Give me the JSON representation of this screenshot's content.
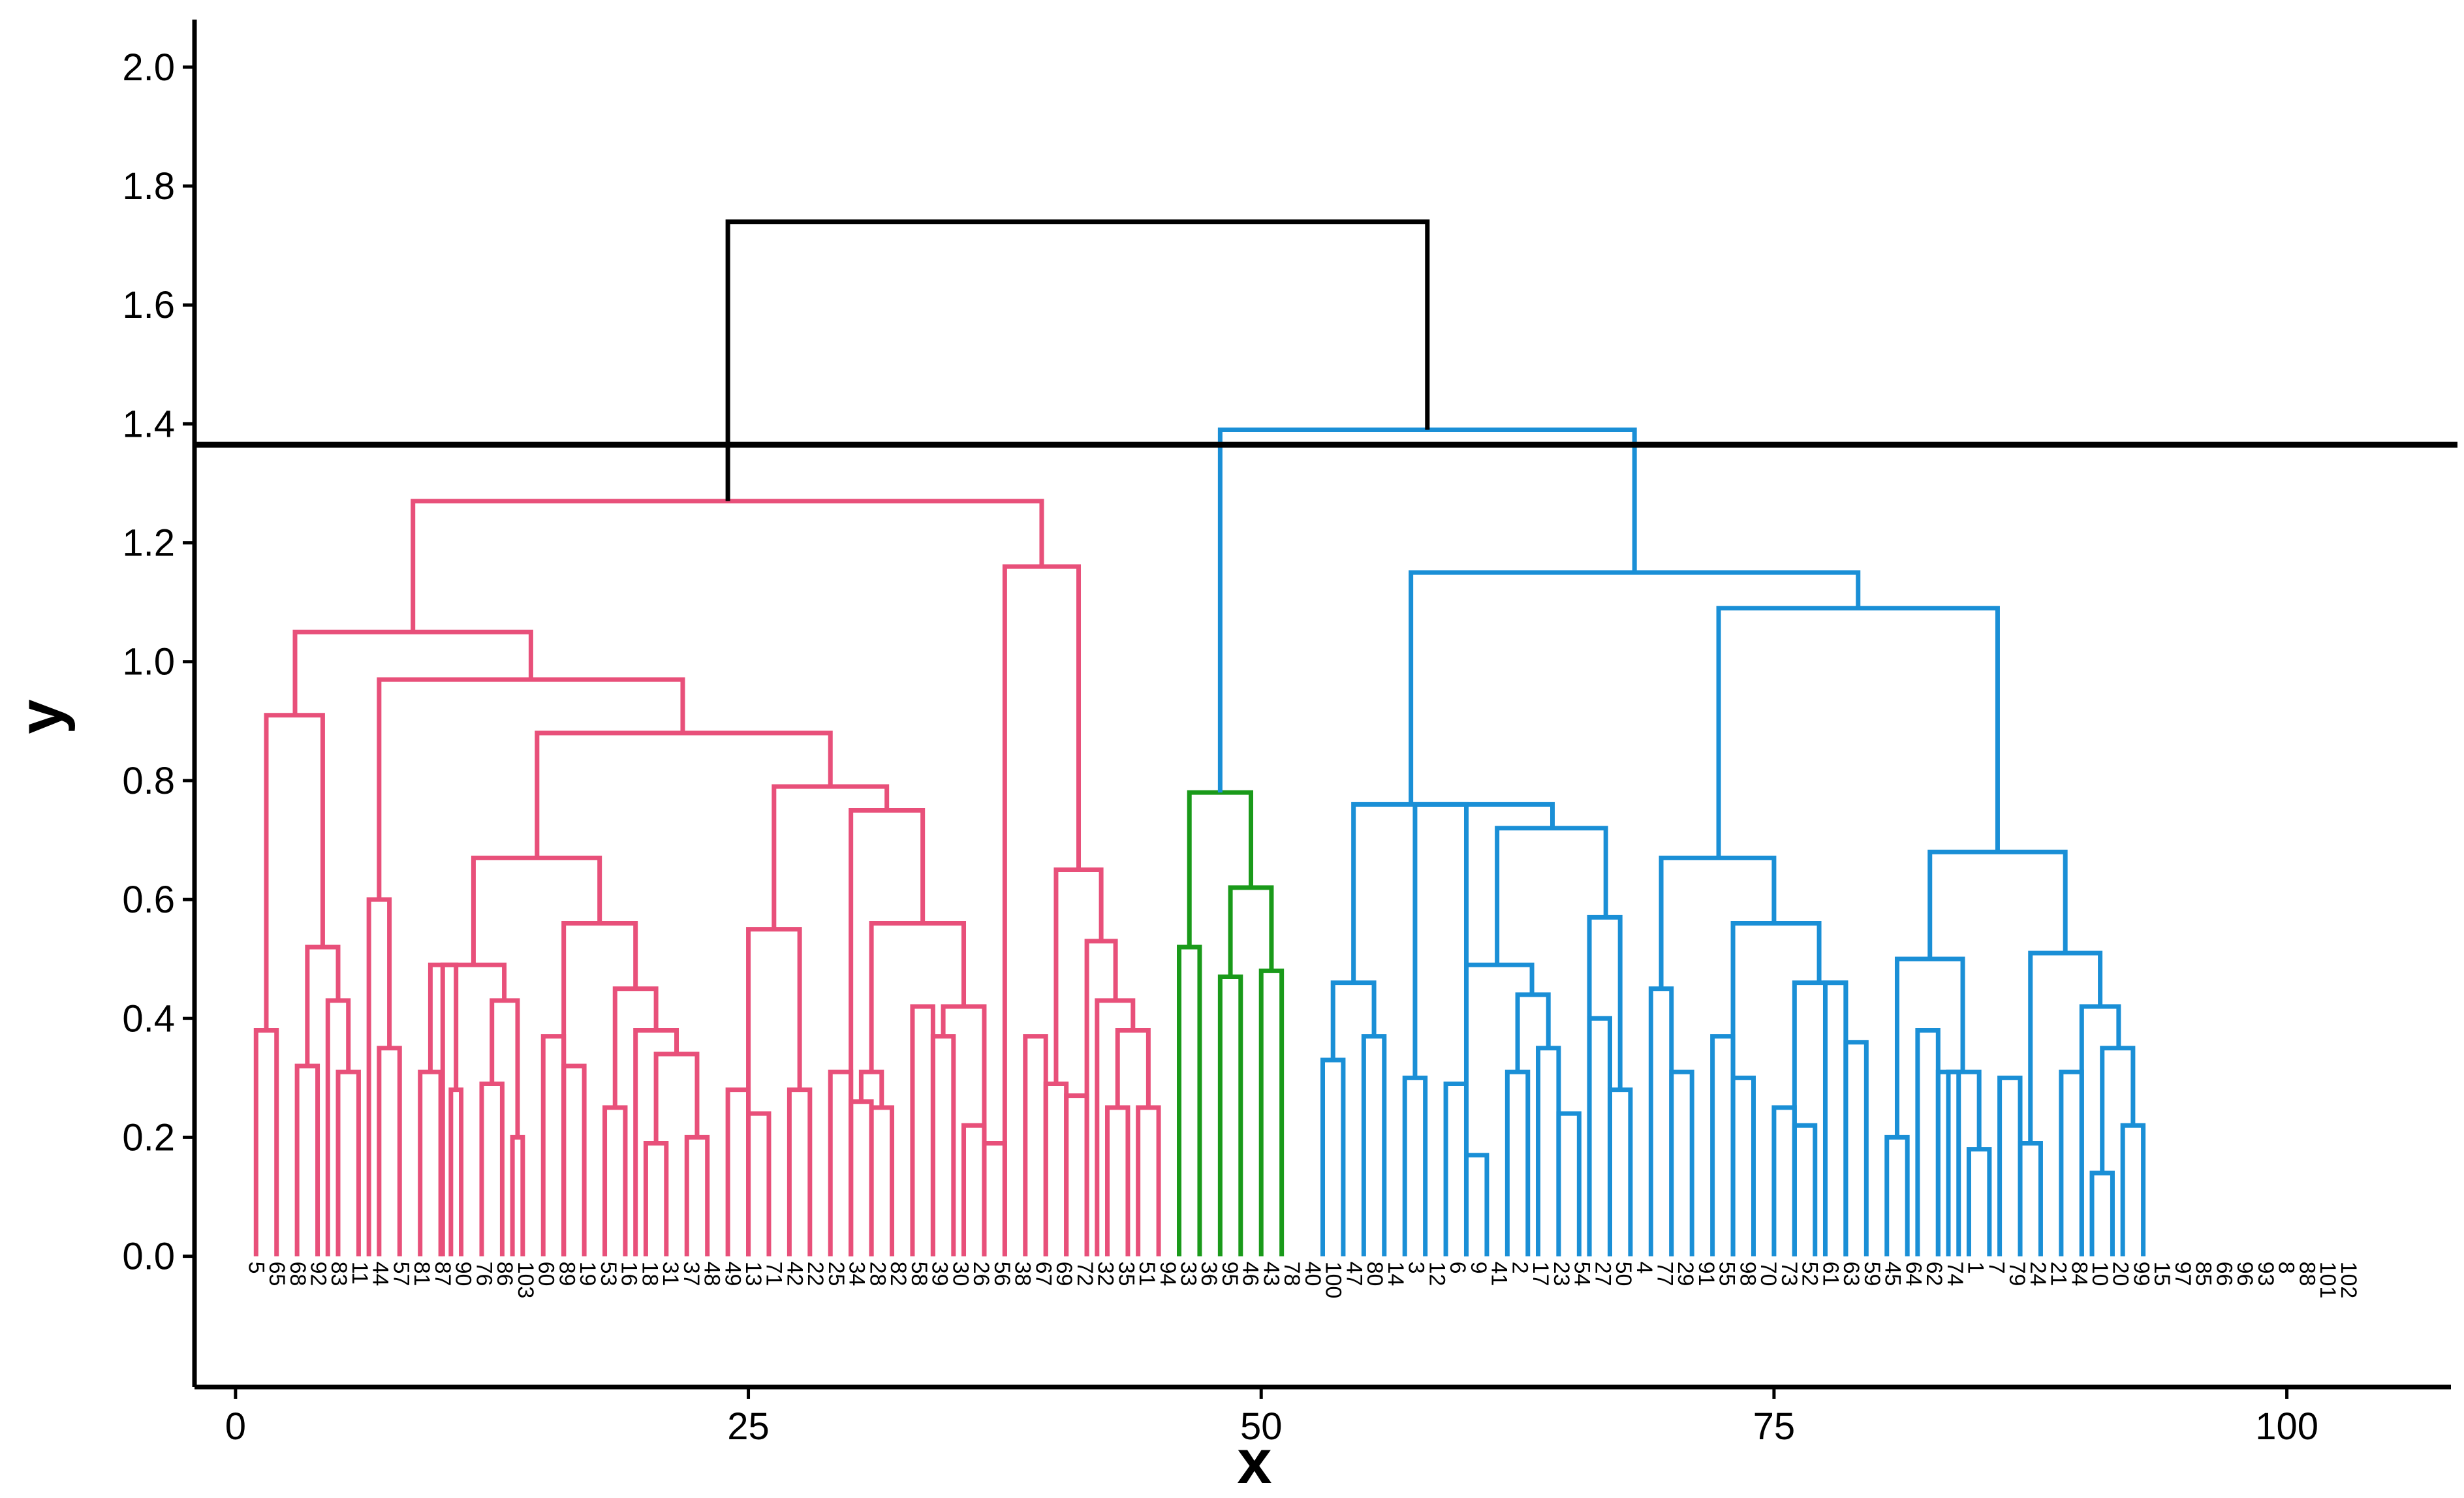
{
  "chart_data": {
    "type": "dendrogram",
    "xlabel": "x",
    "ylabel": "y",
    "xlim": [
      -2,
      108
    ],
    "ylim": [
      -0.22,
      2.08
    ],
    "x_ticks": [
      {
        "value": 0,
        "label": "0"
      },
      {
        "value": 25,
        "label": "25"
      },
      {
        "value": 50,
        "label": "50"
      },
      {
        "value": 75,
        "label": "75"
      },
      {
        "value": 100,
        "label": "100"
      }
    ],
    "y_ticks": [
      {
        "value": 0.0,
        "label": "0.0"
      },
      {
        "value": 0.2,
        "label": "0.2"
      },
      {
        "value": 0.4,
        "label": "0.4"
      },
      {
        "value": 0.6,
        "label": "0.6"
      },
      {
        "value": 0.8,
        "label": "0.8"
      },
      {
        "value": 1.0,
        "label": "1.0"
      },
      {
        "value": 1.2,
        "label": "1.2"
      },
      {
        "value": 1.4,
        "label": "1.4"
      },
      {
        "value": 1.6,
        "label": "1.6"
      },
      {
        "value": 1.8,
        "label": "1.8"
      },
      {
        "value": 2.0,
        "label": "2.0"
      }
    ],
    "cut_height": 1.365,
    "clusters": [
      {
        "color": "#e8507a"
      },
      {
        "color": "#1a9a1a"
      },
      {
        "color": "#1a8fd6"
      }
    ],
    "link_color": "#000000",
    "leaf_labels": [
      "5",
      "65",
      "68",
      "92",
      "83",
      "11",
      "44",
      "57",
      "81",
      "87",
      "90",
      "76",
      "86",
      "103",
      "60",
      "89",
      "19",
      "53",
      "16",
      "18",
      "31",
      "37",
      "48",
      "49",
      "13",
      "71",
      "42",
      "22",
      "25",
      "34",
      "28",
      "82",
      "58",
      "39",
      "30",
      "26",
      "56",
      "38",
      "67",
      "69",
      "72",
      "32",
      "35",
      "51",
      "94",
      "33",
      "36",
      "95",
      "46",
      "43",
      "78",
      "40",
      "100",
      "47",
      "80",
      "14",
      "3",
      "12",
      "6",
      "9",
      "41",
      "2",
      "17",
      "23",
      "54",
      "27",
      "50",
      "4",
      "77",
      "29",
      "91",
      "55",
      "98",
      "70",
      "73",
      "52",
      "61",
      "63",
      "59",
      "45",
      "64",
      "62",
      "74",
      "1",
      "7",
      "79",
      "24",
      "21",
      "84",
      "10",
      "20",
      "99",
      "15",
      "97",
      "85",
      "66",
      "96",
      "93",
      "8",
      "88",
      "101",
      "102"
    ],
    "merges": [
      {
        "x1": 1,
        "x2": 2,
        "h": 0.38,
        "color": "#e8507a"
      },
      {
        "x1": 3,
        "x2": 4,
        "h": 0.32,
        "color": "#e8507a"
      },
      {
        "x1": 5,
        "x2": 6,
        "h": 0.31,
        "color": "#e8507a"
      },
      {
        "x1": 4.5,
        "x2": 5.5,
        "h": 0.43,
        "color": "#e8507a"
      },
      {
        "x1": 3.5,
        "x2": 5,
        "h": 0.52,
        "color": "#e8507a"
      },
      {
        "x1": 1.5,
        "x2": 4.25,
        "h": 0.91,
        "color": "#e8507a"
      },
      {
        "x1": 7,
        "x2": 8,
        "h": 0.35,
        "color": "#e8507a"
      },
      {
        "x1": 6.5,
        "x2": 7.5,
        "h": 0.6,
        "color": "#e8507a"
      },
      {
        "x1": 9,
        "x2": 10,
        "h": 0.31,
        "color": "#e8507a"
      },
      {
        "x1": 10.5,
        "x2": 11,
        "h": 0.28,
        "color": "#e8507a"
      },
      {
        "x1": 9.5,
        "x2": 10.75,
        "h": 0.49,
        "color": "#e8507a"
      },
      {
        "x1": 12,
        "x2": 13,
        "h": 0.29,
        "color": "#e8507a"
      },
      {
        "x1": 13.5,
        "x2": 14,
        "h": 0.2,
        "color": "#e8507a"
      },
      {
        "x1": 12.5,
        "x2": 13.75,
        "h": 0.43,
        "color": "#e8507a"
      },
      {
        "x1": 10.1,
        "x2": 13.1,
        "h": 0.49,
        "color": "#e8507a"
      },
      {
        "x1": 15,
        "x2": 16,
        "h": 0.37,
        "color": "#e8507a"
      },
      {
        "x1": 16,
        "x2": 17,
        "h": 0.32,
        "color": "#e8507a"
      },
      {
        "x1": 18,
        "x2": 19,
        "h": 0.25,
        "color": "#e8507a"
      },
      {
        "x1": 20,
        "x2": 21,
        "h": 0.19,
        "color": "#e8507a"
      },
      {
        "x1": 22,
        "x2": 23,
        "h": 0.2,
        "color": "#e8507a"
      },
      {
        "x1": 20.5,
        "x2": 22.5,
        "h": 0.34,
        "color": "#e8507a"
      },
      {
        "x1": 19.5,
        "x2": 21.5,
        "h": 0.38,
        "color": "#e8507a"
      },
      {
        "x1": 18.5,
        "x2": 20.5,
        "h": 0.45,
        "color": "#e8507a"
      },
      {
        "x1": 16,
        "x2": 19.5,
        "h": 0.56,
        "color": "#e8507a"
      },
      {
        "x1": 11.6,
        "x2": 17.75,
        "h": 0.67,
        "color": "#e8507a"
      },
      {
        "x1": 24,
        "x2": 25,
        "h": 0.28,
        "color": "#e8507a"
      },
      {
        "x1": 25,
        "x2": 26,
        "h": 0.24,
        "color": "#e8507a"
      },
      {
        "x1": 27,
        "x2": 28,
        "h": 0.28,
        "color": "#e8507a"
      },
      {
        "x1": 25,
        "x2": 27.5,
        "h": 0.55,
        "color": "#e8507a"
      },
      {
        "x1": 29,
        "x2": 30,
        "h": 0.31,
        "color": "#e8507a"
      },
      {
        "x1": 30,
        "x2": 31,
        "h": 0.26,
        "color": "#e8507a"
      },
      {
        "x1": 31,
        "x2": 32,
        "h": 0.25,
        "color": "#e8507a"
      },
      {
        "x1": 30.5,
        "x2": 31.5,
        "h": 0.31,
        "color": "#e8507a"
      },
      {
        "x1": 33,
        "x2": 34,
        "h": 0.42,
        "color": "#e8507a"
      },
      {
        "x1": 34,
        "x2": 35,
        "h": 0.37,
        "color": "#e8507a"
      },
      {
        "x1": 35.5,
        "x2": 36.5,
        "h": 0.22,
        "color": "#e8507a"
      },
      {
        "x1": 36.5,
        "x2": 37.5,
        "h": 0.19,
        "color": "#e8507a"
      },
      {
        "x1": 34.5,
        "x2": 36.5,
        "h": 0.42,
        "color": "#e8507a"
      },
      {
        "x1": 31,
        "x2": 35.5,
        "h": 0.56,
        "color": "#e8507a"
      },
      {
        "x1": 30,
        "x2": 33.5,
        "h": 0.75,
        "color": "#e8507a"
      },
      {
        "x1": 26.25,
        "x2": 31.75,
        "h": 0.79,
        "color": "#e8507a"
      },
      {
        "x1": 14.7,
        "x2": 29,
        "h": 0.88,
        "color": "#e8507a"
      },
      {
        "x1": 7,
        "x2": 21.8,
        "h": 0.97,
        "color": "#e8507a"
      },
      {
        "x1": 2.9,
        "x2": 14.4,
        "h": 1.05,
        "color": "#e8507a"
      },
      {
        "x1": 38.5,
        "x2": 39.5,
        "h": 0.37,
        "color": "#e8507a"
      },
      {
        "x1": 39.5,
        "x2": 40.5,
        "h": 0.29,
        "color": "#e8507a"
      },
      {
        "x1": 40.5,
        "x2": 41.5,
        "h": 0.27,
        "color": "#e8507a"
      },
      {
        "x1": 42.5,
        "x2": 43.5,
        "h": 0.25,
        "color": "#e8507a"
      },
      {
        "x1": 44,
        "x2": 45,
        "h": 0.25,
        "color": "#e8507a"
      },
      {
        "x1": 43,
        "x2": 44.5,
        "h": 0.38,
        "color": "#e8507a"
      },
      {
        "x1": 42,
        "x2": 43.75,
        "h": 0.43,
        "color": "#e8507a"
      },
      {
        "x1": 41.5,
        "x2": 42.9,
        "h": 0.53,
        "color": "#e8507a"
      },
      {
        "x1": 40,
        "x2": 42.2,
        "h": 0.65,
        "color": "#e8507a"
      },
      {
        "x1": 37.5,
        "x2": 41.1,
        "h": 1.16,
        "color": "#e8507a"
      },
      {
        "x1": 8.65,
        "x2": 39.3,
        "h": 1.27,
        "color": "#e8507a"
      },
      {
        "x1": 46,
        "x2": 47,
        "h": 0.52,
        "color": "#1a9a1a"
      },
      {
        "x1": 48,
        "x2": 49,
        "h": 0.47,
        "color": "#1a9a1a"
      },
      {
        "x1": 50,
        "x2": 51,
        "h": 0.48,
        "color": "#1a9a1a"
      },
      {
        "x1": 48.5,
        "x2": 50.5,
        "h": 0.62,
        "color": "#1a9a1a"
      },
      {
        "x1": 46.5,
        "x2": 49.5,
        "h": 0.78,
        "color": "#1a9a1a"
      },
      {
        "x1": 53,
        "x2": 54,
        "h": 0.33,
        "color": "#1a8fd6"
      },
      {
        "x1": 55,
        "x2": 56,
        "h": 0.37,
        "color": "#1a8fd6"
      },
      {
        "x1": 53.5,
        "x2": 55.5,
        "h": 0.46,
        "color": "#1a8fd6"
      },
      {
        "x1": 57,
        "x2": 58,
        "h": 0.3,
        "color": "#1a8fd6"
      },
      {
        "x1": 59,
        "x2": 60,
        "h": 0.29,
        "color": "#1a8fd6"
      },
      {
        "x1": 60,
        "x2": 61,
        "h": 0.17,
        "color": "#1a8fd6"
      },
      {
        "x1": 62,
        "x2": 63,
        "h": 0.31,
        "color": "#1a8fd6"
      },
      {
        "x1": 63.5,
        "x2": 64.5,
        "h": 0.35,
        "color": "#1a8fd6"
      },
      {
        "x1": 64.5,
        "x2": 65.5,
        "h": 0.24,
        "color": "#1a8fd6"
      },
      {
        "x1": 62.5,
        "x2": 64,
        "h": 0.44,
        "color": "#1a8fd6"
      },
      {
        "x1": 60,
        "x2": 63.2,
        "h": 0.49,
        "color": "#1a8fd6"
      },
      {
        "x1": 66,
        "x2": 67,
        "h": 0.4,
        "color": "#1a8fd6"
      },
      {
        "x1": 67,
        "x2": 68,
        "h": 0.28,
        "color": "#1a8fd6"
      },
      {
        "x1": 66,
        "x2": 67.5,
        "h": 0.57,
        "color": "#1a8fd6"
      },
      {
        "x1": 61.5,
        "x2": 66.8,
        "h": 0.72,
        "color": "#1a8fd6"
      },
      {
        "x1": 57.5,
        "x2": 64.2,
        "h": 0.76,
        "color": "#1a8fd6"
      },
      {
        "x1": 54.5,
        "x2": 60,
        "h": 0.76,
        "color": "#1a8fd6"
      },
      {
        "x1": 69,
        "x2": 70,
        "h": 0.45,
        "color": "#1a8fd6"
      },
      {
        "x1": 70,
        "x2": 71,
        "h": 0.31,
        "color": "#1a8fd6"
      },
      {
        "x1": 72,
        "x2": 73,
        "h": 0.37,
        "color": "#1a8fd6"
      },
      {
        "x1": 73,
        "x2": 74,
        "h": 0.3,
        "color": "#1a8fd6"
      },
      {
        "x1": 75,
        "x2": 76,
        "h": 0.25,
        "color": "#1a8fd6"
      },
      {
        "x1": 76,
        "x2": 77,
        "h": 0.22,
        "color": "#1a8fd6"
      },
      {
        "x1": 77.5,
        "x2": 78.5,
        "h": 0.46,
        "color": "#1a8fd6"
      },
      {
        "x1": 78.5,
        "x2": 79.5,
        "h": 0.36,
        "color": "#1a8fd6"
      },
      {
        "x1": 76,
        "x2": 78.5,
        "h": 0.46,
        "color": "#1a8fd6"
      },
      {
        "x1": 73,
        "x2": 77.2,
        "h": 0.56,
        "color": "#1a8fd6"
      },
      {
        "x1": 69.5,
        "x2": 75,
        "h": 0.67,
        "color": "#1a8fd6"
      },
      {
        "x1": 80.5,
        "x2": 81.5,
        "h": 0.2,
        "color": "#1a8fd6"
      },
      {
        "x1": 82,
        "x2": 83,
        "h": 0.38,
        "color": "#1a8fd6"
      },
      {
        "x1": 83,
        "x2": 84,
        "h": 0.31,
        "color": "#1a8fd6"
      },
      {
        "x1": 84.5,
        "x2": 85.5,
        "h": 0.18,
        "color": "#1a8fd6"
      },
      {
        "x1": 83.5,
        "x2": 85,
        "h": 0.31,
        "color": "#1a8fd6"
      },
      {
        "x1": 81,
        "x2": 84.2,
        "h": 0.5,
        "color": "#1a8fd6"
      },
      {
        "x1": 86,
        "x2": 87,
        "h": 0.3,
        "color": "#1a8fd6"
      },
      {
        "x1": 87,
        "x2": 88,
        "h": 0.19,
        "color": "#1a8fd6"
      },
      {
        "x1": 89,
        "x2": 90,
        "h": 0.31,
        "color": "#1a8fd6"
      },
      {
        "x1": 90.5,
        "x2": 91.5,
        "h": 0.14,
        "color": "#1a8fd6"
      },
      {
        "x1": 92,
        "x2": 93,
        "h": 0.22,
        "color": "#1a8fd6"
      },
      {
        "x1": 91,
        "x2": 92.5,
        "h": 0.35,
        "color": "#1a8fd6"
      },
      {
        "x1": 90,
        "x2": 91.8,
        "h": 0.42,
        "color": "#1a8fd6"
      },
      {
        "x1": 87.5,
        "x2": 90.9,
        "h": 0.51,
        "color": "#1a8fd6"
      },
      {
        "x1": 82.6,
        "x2": 89.2,
        "h": 0.68,
        "color": "#1a8fd6"
      },
      {
        "x1": 72.3,
        "x2": 85.9,
        "h": 1.09,
        "color": "#1a8fd6"
      },
      {
        "x1": 57.3,
        "x2": 79.1,
        "h": 1.15,
        "color": "#1a8fd6"
      },
      {
        "x1": 48,
        "x2": 68.2,
        "h": 1.39,
        "color": "#1a8fd6"
      },
      {
        "x1": 24,
        "x2": 58.1,
        "h": 1.74,
        "color": "#000000"
      }
    ]
  }
}
